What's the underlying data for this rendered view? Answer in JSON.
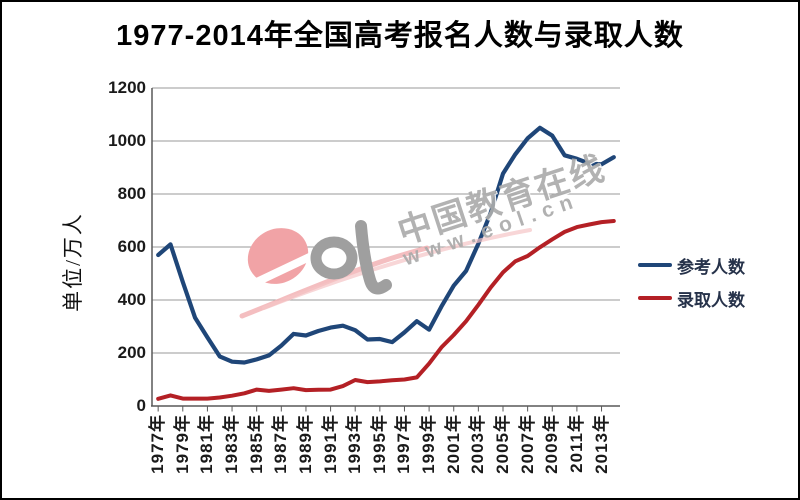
{
  "chart_data": {
    "type": "line",
    "title": "1977-2014年全国高考报名人数与录取人数",
    "ylabel": "单位/万人",
    "xlabel": "",
    "ylim": [
      0,
      1200
    ],
    "y_ticks": [
      0,
      200,
      400,
      600,
      800,
      1000,
      1200
    ],
    "grid": true,
    "legend_position": "right",
    "x": [
      1977,
      1978,
      1979,
      1980,
      1981,
      1982,
      1983,
      1984,
      1985,
      1986,
      1987,
      1988,
      1989,
      1990,
      1991,
      1992,
      1993,
      1994,
      1995,
      1996,
      1997,
      1998,
      1999,
      2000,
      2001,
      2002,
      2003,
      2004,
      2005,
      2006,
      2007,
      2008,
      2009,
      2010,
      2011,
      2012,
      2013,
      2014
    ],
    "x_tick_labels": [
      "1977年",
      "1979年",
      "1981年",
      "1983年",
      "1985年",
      "1987年",
      "1989年",
      "1991年",
      "1993年",
      "1995年",
      "1997年",
      "1999年",
      "2001年",
      "2003年",
      "2005年",
      "2007年",
      "2009年",
      "2011年",
      "2013年"
    ],
    "series": [
      {
        "name": "参考人数",
        "color": "#1F4678",
        "values": [
          570,
          610,
          468,
          333,
          259,
          187,
          167,
          164,
          176,
          191,
          228,
          272,
          266,
          283,
          296,
          303,
          286,
          251,
          253,
          241,
          278,
          320,
          288,
          375,
          454,
          510,
          613,
          729,
          877,
          950,
          1010,
          1050,
          1020,
          946,
          933,
          915,
          912,
          939
        ]
      },
      {
        "name": "录取人数",
        "color": "#B42025",
        "values": [
          27,
          40,
          28,
          28,
          28,
          32,
          39,
          48,
          62,
          57,
          62,
          67,
          60,
          61,
          62,
          75,
          98,
          90,
          93,
          97,
          100,
          108,
          160,
          221,
          268,
          320,
          382,
          447,
          504,
          546,
          566,
          599,
          629,
          657,
          675,
          685,
          694,
          698
        ]
      }
    ],
    "axis_color": "#595959",
    "grid_color": "#9a9a9a"
  },
  "watermark": {
    "logo": "eol",
    "line1": "中国教育在线",
    "line2": "www.eol.cn",
    "logo_pink": "#F1A3A6",
    "logo_gray": "#9F9F9F"
  }
}
